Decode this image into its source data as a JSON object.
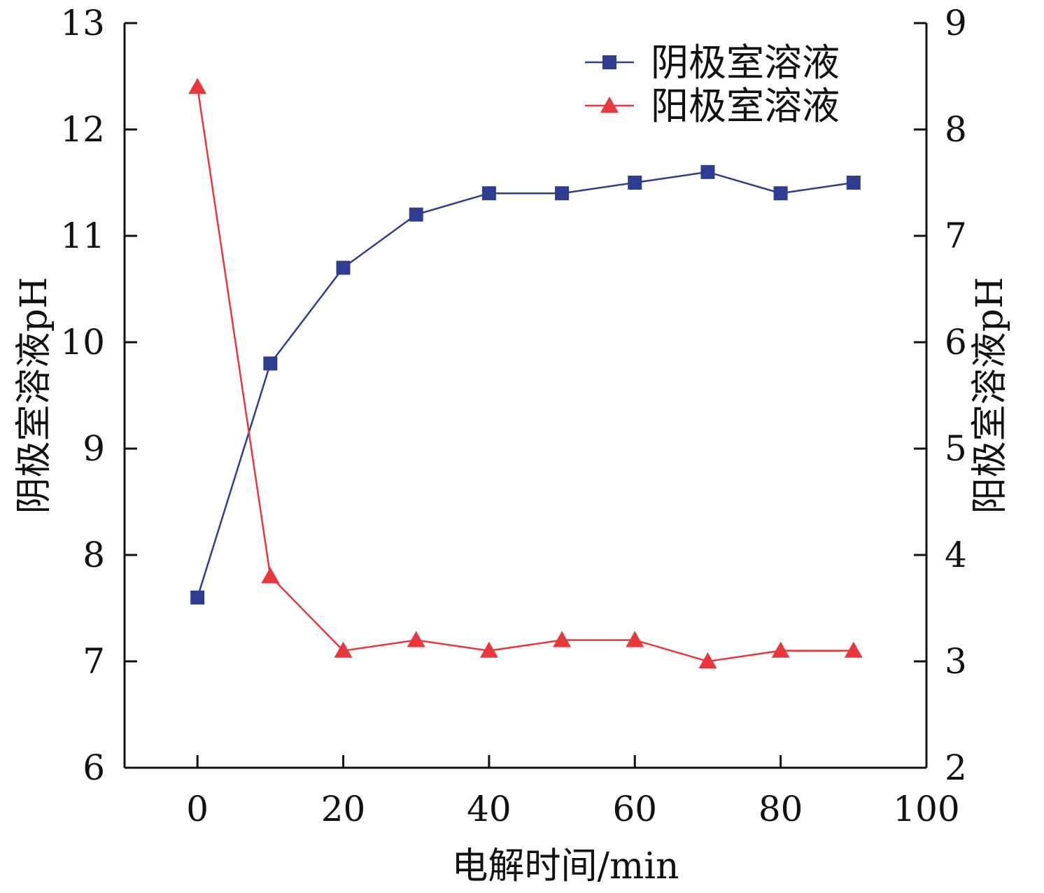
{
  "chart_data": {
    "type": "line",
    "xlabel": "电解时间/min",
    "ylabel_left": "阴极室溶液pH",
    "ylabel_right": "阳极室溶液pH",
    "xlim": [
      -10,
      100
    ],
    "ylim_left": [
      6,
      13
    ],
    "ylim_right": [
      2,
      9
    ],
    "x_ticks": [
      0,
      20,
      40,
      60,
      80,
      100
    ],
    "y_ticks_left": [
      6,
      7,
      8,
      9,
      10,
      11,
      12,
      13
    ],
    "y_ticks_right": [
      2,
      3,
      4,
      5,
      6,
      7,
      8,
      9
    ],
    "grid": false,
    "legend_position": "top-right",
    "series": [
      {
        "name": "阴极室溶液",
        "axis": "left",
        "marker": "square",
        "color": "#2E3D8F",
        "x": [
          0,
          10,
          20,
          30,
          40,
          50,
          60,
          70,
          80,
          90
        ],
        "values": [
          7.6,
          9.8,
          10.7,
          11.2,
          11.4,
          11.4,
          11.5,
          11.6,
          11.4,
          11.5
        ]
      },
      {
        "name": "阳极室溶液",
        "axis": "right",
        "marker": "triangle",
        "color": "#E8383D",
        "x": [
          0,
          10,
          20,
          30,
          40,
          50,
          60,
          70,
          80,
          90
        ],
        "values": [
          8.4,
          3.8,
          3.1,
          3.2,
          3.1,
          3.2,
          3.2,
          3.0,
          3.1,
          3.1
        ]
      }
    ]
  }
}
